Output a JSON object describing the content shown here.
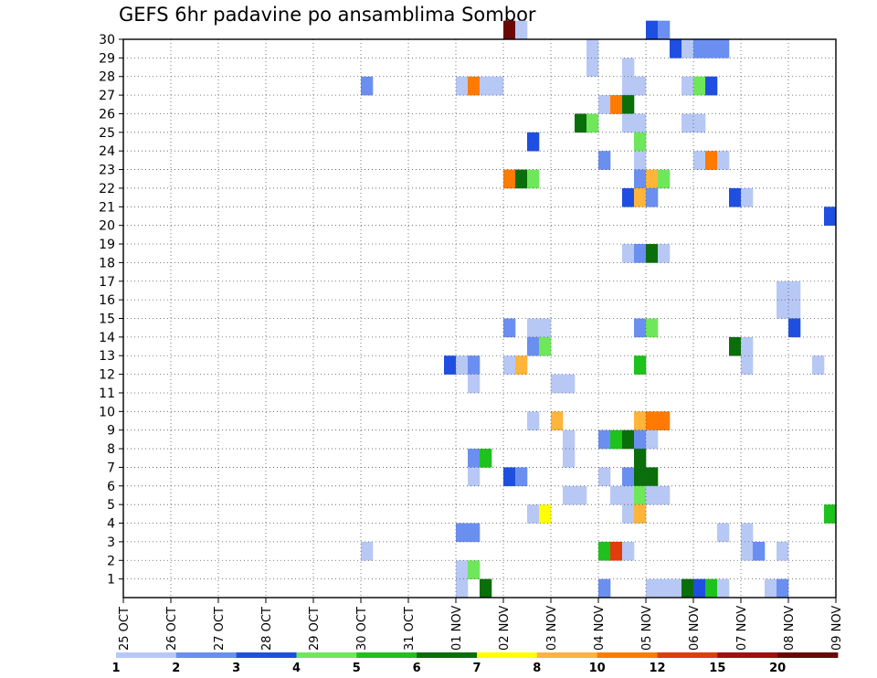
{
  "chart_data": {
    "type": "heatmap",
    "title": "GEFS 6hr padavine po ansamblima Sombor",
    "xlabel": "",
    "ylabel": "",
    "x_tick_labels": [
      "25 OCT",
      "26 OCT",
      "27 OCT",
      "28 OCT",
      "29 OCT",
      "30 OCT",
      "31 OCT",
      "01 NOV",
      "02 NOV",
      "03 NOV",
      "04 NOV",
      "05 NOV",
      "06 NOV",
      "07 NOV",
      "08 NOV",
      "09 NOV"
    ],
    "y_tick_labels": [
      "1",
      "2",
      "3",
      "4",
      "5",
      "6",
      "7",
      "8",
      "9",
      "10",
      "11",
      "12",
      "13",
      "14",
      "15",
      "16",
      "17",
      "18",
      "19",
      "20",
      "21",
      "22",
      "23",
      "24",
      "25",
      "26",
      "27",
      "28",
      "29",
      "30"
    ],
    "time_step_hours": 6,
    "xlim": [
      "25 OCT 00Z",
      "09 NOV 00Z"
    ],
    "ylim": [
      0,
      30
    ],
    "grid": true,
    "colorbar": {
      "labels": [
        "1",
        "2",
        "3",
        "4",
        "5",
        "6",
        "7",
        "8",
        "10",
        "12",
        "15",
        "20"
      ],
      "colors": [
        "#b7c8f5",
        "#6b8ff0",
        "#1f4fe0",
        "#6ee85a",
        "#1dc21d",
        "#0a6e0a",
        "#ffff00",
        "#ffb43a",
        "#ff7a00",
        "#e03c0c",
        "#a01010",
        "#6a0808"
      ]
    },
    "cells": [
      {
        "member": 30,
        "time": "02 NOV 00Z",
        "bin": 11
      },
      {
        "member": 30,
        "time": "02 NOV 06Z",
        "bin": 0
      },
      {
        "member": 30,
        "time": "05 NOV 00Z",
        "bin": 2
      },
      {
        "member": 30,
        "time": "05 NOV 06Z",
        "bin": 1
      },
      {
        "member": 29,
        "time": "03 NOV 18Z",
        "bin": 0
      },
      {
        "member": 29,
        "time": "05 NOV 12Z",
        "bin": 2
      },
      {
        "member": 29,
        "time": "05 NOV 18Z",
        "bin": 0
      },
      {
        "member": 29,
        "time": "06 NOV 00Z",
        "bin": 1
      },
      {
        "member": 29,
        "time": "06 NOV 06Z",
        "bin": 1
      },
      {
        "member": 29,
        "time": "06 NOV 12Z",
        "bin": 1
      },
      {
        "member": 28,
        "time": "03 NOV 18Z",
        "bin": 0
      },
      {
        "member": 28,
        "time": "04 NOV 12Z",
        "bin": 0
      },
      {
        "member": 27,
        "time": "30 OCT 00Z",
        "bin": 1
      },
      {
        "member": 27,
        "time": "01 NOV 00Z",
        "bin": 0
      },
      {
        "member": 27,
        "time": "01 NOV 06Z",
        "bin": 8
      },
      {
        "member": 27,
        "time": "01 NOV 12Z",
        "bin": 0
      },
      {
        "member": 27,
        "time": "01 NOV 18Z",
        "bin": 0
      },
      {
        "member": 27,
        "time": "04 NOV 12Z",
        "bin": 0
      },
      {
        "member": 27,
        "time": "04 NOV 18Z",
        "bin": 0
      },
      {
        "member": 27,
        "time": "05 NOV 18Z",
        "bin": 0
      },
      {
        "member": 27,
        "time": "06 NOV 00Z",
        "bin": 3
      },
      {
        "member": 27,
        "time": "06 NOV 06Z",
        "bin": 2
      },
      {
        "member": 26,
        "time": "04 NOV 00Z",
        "bin": 0
      },
      {
        "member": 26,
        "time": "04 NOV 06Z",
        "bin": 8
      },
      {
        "member": 26,
        "time": "04 NOV 12Z",
        "bin": 5
      },
      {
        "member": 25,
        "time": "03 NOV 12Z",
        "bin": 5
      },
      {
        "member": 25,
        "time": "03 NOV 18Z",
        "bin": 3
      },
      {
        "member": 25,
        "time": "04 NOV 12Z",
        "bin": 0
      },
      {
        "member": 25,
        "time": "04 NOV 18Z",
        "bin": 0
      },
      {
        "member": 25,
        "time": "05 NOV 18Z",
        "bin": 0
      },
      {
        "member": 25,
        "time": "06 NOV 00Z",
        "bin": 0
      },
      {
        "member": 24,
        "time": "02 NOV 12Z",
        "bin": 2
      },
      {
        "member": 24,
        "time": "04 NOV 18Z",
        "bin": 3
      },
      {
        "member": 23,
        "time": "04 NOV 00Z",
        "bin": 1
      },
      {
        "member": 23,
        "time": "04 NOV 18Z",
        "bin": 0
      },
      {
        "member": 23,
        "time": "06 NOV 00Z",
        "bin": 0
      },
      {
        "member": 23,
        "time": "06 NOV 06Z",
        "bin": 8
      },
      {
        "member": 23,
        "time": "06 NOV 12Z",
        "bin": 0
      },
      {
        "member": 22,
        "time": "02 NOV 00Z",
        "bin": 8
      },
      {
        "member": 22,
        "time": "02 NOV 06Z",
        "bin": 5
      },
      {
        "member": 22,
        "time": "02 NOV 12Z",
        "bin": 3
      },
      {
        "member": 22,
        "time": "04 NOV 18Z",
        "bin": 1
      },
      {
        "member": 22,
        "time": "05 NOV 00Z",
        "bin": 7
      },
      {
        "member": 22,
        "time": "05 NOV 06Z",
        "bin": 3
      },
      {
        "member": 21,
        "time": "04 NOV 12Z",
        "bin": 2
      },
      {
        "member": 21,
        "time": "04 NOV 18Z",
        "bin": 7
      },
      {
        "member": 21,
        "time": "05 NOV 00Z",
        "bin": 1
      },
      {
        "member": 21,
        "time": "06 NOV 18Z",
        "bin": 2
      },
      {
        "member": 21,
        "time": "07 NOV 00Z",
        "bin": 0
      },
      {
        "member": 20,
        "time": "08 NOV 18Z",
        "bin": 2
      },
      {
        "member": 18,
        "time": "04 NOV 12Z",
        "bin": 0
      },
      {
        "member": 18,
        "time": "04 NOV 18Z",
        "bin": 1
      },
      {
        "member": 18,
        "time": "05 NOV 00Z",
        "bin": 5
      },
      {
        "member": 18,
        "time": "05 NOV 06Z",
        "bin": 0
      },
      {
        "member": 16,
        "time": "07 NOV 18Z",
        "bin": 0
      },
      {
        "member": 16,
        "time": "08 NOV 00Z",
        "bin": 0
      },
      {
        "member": 15,
        "time": "07 NOV 18Z",
        "bin": 0
      },
      {
        "member": 15,
        "time": "08 NOV 00Z",
        "bin": 0
      },
      {
        "member": 14,
        "time": "02 NOV 00Z",
        "bin": 1
      },
      {
        "member": 14,
        "time": "02 NOV 12Z",
        "bin": 0
      },
      {
        "member": 14,
        "time": "02 NOV 18Z",
        "bin": 0
      },
      {
        "member": 14,
        "time": "04 NOV 18Z",
        "bin": 1
      },
      {
        "member": 14,
        "time": "05 NOV 00Z",
        "bin": 3
      },
      {
        "member": 14,
        "time": "08 NOV 00Z",
        "bin": 2
      },
      {
        "member": 13,
        "time": "02 NOV 12Z",
        "bin": 1
      },
      {
        "member": 13,
        "time": "02 NOV 18Z",
        "bin": 3
      },
      {
        "member": 13,
        "time": "06 NOV 18Z",
        "bin": 5
      },
      {
        "member": 13,
        "time": "07 NOV 00Z",
        "bin": 0
      },
      {
        "member": 12,
        "time": "31 OCT 18Z",
        "bin": 2
      },
      {
        "member": 12,
        "time": "01 NOV 00Z",
        "bin": 0
      },
      {
        "member": 12,
        "time": "01 NOV 06Z",
        "bin": 1
      },
      {
        "member": 12,
        "time": "02 NOV 00Z",
        "bin": 0
      },
      {
        "member": 12,
        "time": "02 NOV 06Z",
        "bin": 7
      },
      {
        "member": 12,
        "time": "04 NOV 18Z",
        "bin": 4
      },
      {
        "member": 12,
        "time": "07 NOV 00Z",
        "bin": 0
      },
      {
        "member": 12,
        "time": "08 NOV 12Z",
        "bin": 0
      },
      {
        "member": 11,
        "time": "01 NOV 06Z",
        "bin": 0
      },
      {
        "member": 11,
        "time": "03 NOV 00Z",
        "bin": 0
      },
      {
        "member": 11,
        "time": "03 NOV 06Z",
        "bin": 0
      },
      {
        "member": 9,
        "time": "02 NOV 12Z",
        "bin": 0
      },
      {
        "member": 9,
        "time": "03 NOV 00Z",
        "bin": 7
      },
      {
        "member": 9,
        "time": "04 NOV 18Z",
        "bin": 7
      },
      {
        "member": 9,
        "time": "05 NOV 00Z",
        "bin": 8
      },
      {
        "member": 9,
        "time": "05 NOV 06Z",
        "bin": 8
      },
      {
        "member": 8,
        "time": "03 NOV 06Z",
        "bin": 0
      },
      {
        "member": 8,
        "time": "04 NOV 00Z",
        "bin": 1
      },
      {
        "member": 8,
        "time": "04 NOV 06Z",
        "bin": 4
      },
      {
        "member": 8,
        "time": "04 NOV 12Z",
        "bin": 5
      },
      {
        "member": 8,
        "time": "04 NOV 18Z",
        "bin": 1
      },
      {
        "member": 8,
        "time": "05 NOV 00Z",
        "bin": 0
      },
      {
        "member": 7,
        "time": "01 NOV 06Z",
        "bin": 1
      },
      {
        "member": 7,
        "time": "01 NOV 12Z",
        "bin": 4
      },
      {
        "member": 7,
        "time": "03 NOV 06Z",
        "bin": 0
      },
      {
        "member": 7,
        "time": "04 NOV 18Z",
        "bin": 5
      },
      {
        "member": 6,
        "time": "01 NOV 06Z",
        "bin": 0
      },
      {
        "member": 6,
        "time": "02 NOV 00Z",
        "bin": 2
      },
      {
        "member": 6,
        "time": "02 NOV 06Z",
        "bin": 1
      },
      {
        "member": 6,
        "time": "04 NOV 00Z",
        "bin": 0
      },
      {
        "member": 6,
        "time": "04 NOV 12Z",
        "bin": 1
      },
      {
        "member": 6,
        "time": "04 NOV 18Z",
        "bin": 5
      },
      {
        "member": 6,
        "time": "05 NOV 00Z",
        "bin": 5
      },
      {
        "member": 5,
        "time": "03 NOV 06Z",
        "bin": 0
      },
      {
        "member": 5,
        "time": "03 NOV 12Z",
        "bin": 0
      },
      {
        "member": 5,
        "time": "04 NOV 06Z",
        "bin": 0
      },
      {
        "member": 5,
        "time": "04 NOV 12Z",
        "bin": 0
      },
      {
        "member": 5,
        "time": "04 NOV 18Z",
        "bin": 3
      },
      {
        "member": 5,
        "time": "05 NOV 00Z",
        "bin": 0
      },
      {
        "member": 5,
        "time": "05 NOV 06Z",
        "bin": 0
      },
      {
        "member": 4,
        "time": "02 NOV 12Z",
        "bin": 0
      },
      {
        "member": 4,
        "time": "02 NOV 18Z",
        "bin": 6
      },
      {
        "member": 4,
        "time": "04 NOV 12Z",
        "bin": 0
      },
      {
        "member": 4,
        "time": "04 NOV 18Z",
        "bin": 7
      },
      {
        "member": 4,
        "time": "08 NOV 18Z",
        "bin": 4
      },
      {
        "member": 3,
        "time": "01 NOV 00Z",
        "bin": 1
      },
      {
        "member": 3,
        "time": "01 NOV 06Z",
        "bin": 1
      },
      {
        "member": 3,
        "time": "06 NOV 12Z",
        "bin": 0
      },
      {
        "member": 3,
        "time": "07 NOV 00Z",
        "bin": 0
      },
      {
        "member": 2,
        "time": "30 OCT 00Z",
        "bin": 0
      },
      {
        "member": 2,
        "time": "04 NOV 00Z",
        "bin": 4
      },
      {
        "member": 2,
        "time": "04 NOV 06Z",
        "bin": 9
      },
      {
        "member": 2,
        "time": "04 NOV 12Z",
        "bin": 0
      },
      {
        "member": 2,
        "time": "07 NOV 00Z",
        "bin": 0
      },
      {
        "member": 2,
        "time": "07 NOV 06Z",
        "bin": 1
      },
      {
        "member": 2,
        "time": "07 NOV 18Z",
        "bin": 0
      },
      {
        "member": 1,
        "time": "01 NOV 00Z",
        "bin": 0
      },
      {
        "member": 1,
        "time": "01 NOV 06Z",
        "bin": 3
      },
      {
        "member": 0,
        "time": "01 NOV 12Z",
        "bin": 5
      },
      {
        "member": 0,
        "time": "01 NOV 00Z",
        "bin": 0
      },
      {
        "member": 0,
        "time": "04 NOV 00Z",
        "bin": 1
      },
      {
        "member": 0,
        "time": "05 NOV 00Z",
        "bin": 0
      },
      {
        "member": 0,
        "time": "05 NOV 06Z",
        "bin": 0
      },
      {
        "member": 0,
        "time": "05 NOV 12Z",
        "bin": 0
      },
      {
        "member": 0,
        "time": "05 NOV 18Z",
        "bin": 5
      },
      {
        "member": 0,
        "time": "06 NOV 00Z",
        "bin": 2
      },
      {
        "member": 0,
        "time": "06 NOV 06Z",
        "bin": 4
      },
      {
        "member": 0,
        "time": "06 NOV 12Z",
        "bin": 0
      },
      {
        "member": 0,
        "time": "07 NOV 12Z",
        "bin": 0
      },
      {
        "member": 0,
        "time": "07 NOV 18Z",
        "bin": 1
      }
    ]
  }
}
